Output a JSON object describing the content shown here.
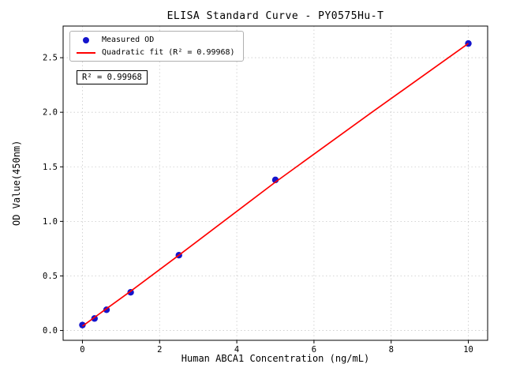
{
  "chart_data": {
    "type": "scatter",
    "title": "ELISA Standard Curve - PY0575Hu-T",
    "xlabel": "Human ABCA1 Concentration (ng/mL)",
    "ylabel": "OD Value(450nm)",
    "xlim": [
      -0.5,
      10.5
    ],
    "ylim": [
      -0.09,
      2.79
    ],
    "x_ticks": [
      0,
      2,
      4,
      6,
      8,
      10
    ],
    "x_tick_labels": [
      "0",
      "2",
      "4",
      "6",
      "8",
      "10"
    ],
    "y_ticks": [
      0.0,
      0.5,
      1.0,
      1.5,
      2.0,
      2.5
    ],
    "y_tick_labels": [
      "0.0",
      "0.5",
      "1.0",
      "1.5",
      "2.0",
      "2.5"
    ],
    "grid": true,
    "grid_style": "dotted",
    "legend_position": "upper left",
    "annotation": "R² = 0.99968",
    "colors": {
      "scatter": "#1414cc",
      "fit_line": "#ff0000",
      "grid": "#c9c9c9",
      "spine": "#000000"
    },
    "series": [
      {
        "name": "Measured OD",
        "kind": "scatter",
        "color": "#1414cc",
        "x": [
          0,
          0.313,
          0.625,
          1.25,
          2.5,
          5,
          10
        ],
        "y": [
          0.05,
          0.11,
          0.19,
          0.35,
          0.69,
          1.38,
          2.63
        ]
      },
      {
        "name": "Quadratic fit (R² = 0.99968)",
        "kind": "line",
        "color": "#ff0000",
        "x": [
          0,
          1.25,
          2.5,
          5,
          7.5,
          10
        ],
        "y": [
          0.04,
          0.36,
          0.69,
          1.36,
          2.0,
          2.63
        ]
      }
    ]
  }
}
